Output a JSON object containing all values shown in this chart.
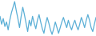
{
  "values": [
    62,
    48,
    58,
    44,
    52,
    38,
    55,
    68,
    78,
    88,
    72,
    58,
    42,
    62,
    78,
    65,
    50,
    35,
    55,
    45,
    62,
    50,
    40,
    55,
    65,
    52,
    40,
    32,
    48,
    60,
    50,
    38,
    30,
    40,
    52,
    42,
    32,
    42,
    52,
    60,
    50,
    42,
    55,
    45,
    38,
    48,
    55,
    45,
    38,
    48,
    60,
    52,
    42,
    55,
    65,
    55,
    42,
    35,
    48,
    60
  ],
  "line_color": "#5bafd6",
  "bg_color": "#ffffff",
  "linewidth": 0.9
}
